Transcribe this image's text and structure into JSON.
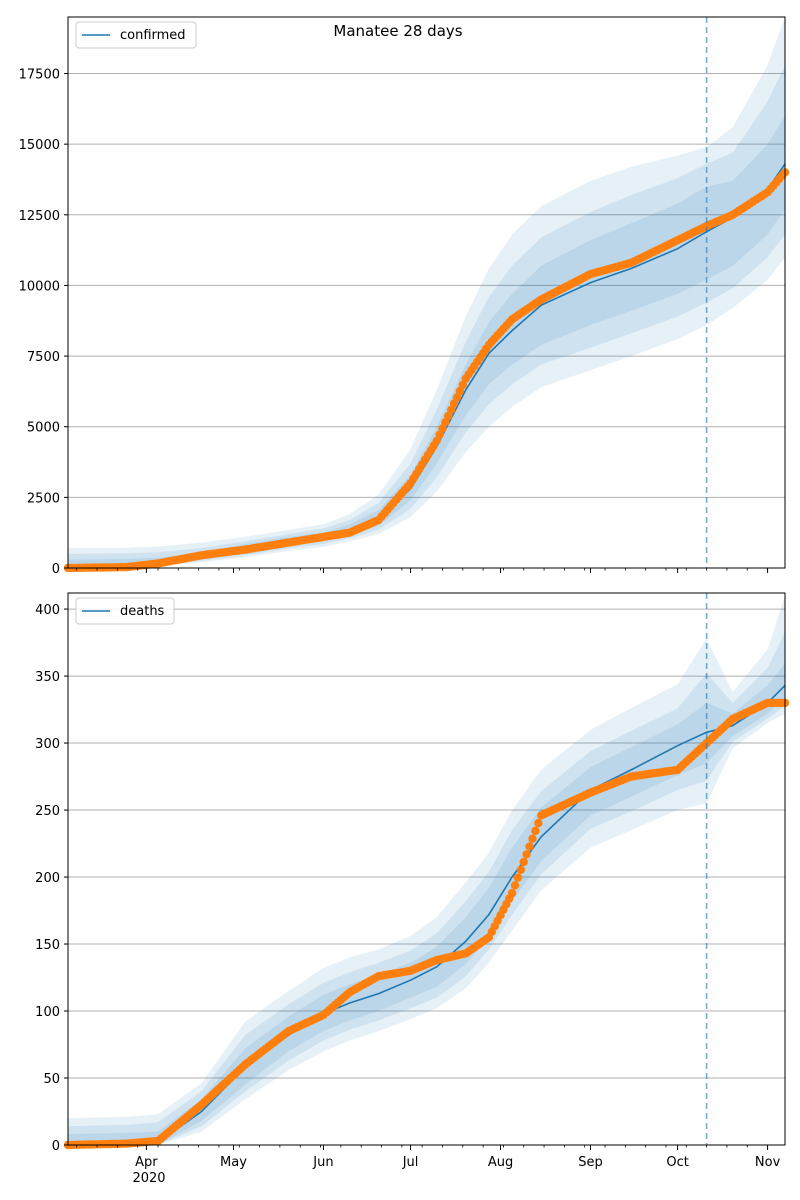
{
  "figure": {
    "title": "Manatee 28 days",
    "x_axis": {
      "month_labels": [
        "Apr",
        "May",
        "Jun",
        "Jul",
        "Aug",
        "Sep",
        "Oct",
        "Nov"
      ],
      "year_label": "2020",
      "range": [
        "2020-03-05",
        "2020-11-07"
      ]
    },
    "forecast_start": "2020-10-11",
    "colors": {
      "model": "#1f77b4",
      "observed": "#ff7f0e",
      "grid": "#b0b0b0"
    }
  },
  "chart_data": [
    {
      "type": "line",
      "legend": "confirmed",
      "legend_position": "top-left",
      "grid": true,
      "ylim": [
        0,
        19500
      ],
      "yticks": [
        0,
        2500,
        5000,
        7500,
        10000,
        12500,
        15000,
        17500
      ],
      "series": [
        {
          "name": "confirmed",
          "kind": "model-median",
          "x": [
            "2020-03-05",
            "2020-03-25",
            "2020-04-05",
            "2020-04-20",
            "2020-05-05",
            "2020-05-20",
            "2020-06-01",
            "2020-06-10",
            "2020-06-20",
            "2020-07-01",
            "2020-07-10",
            "2020-07-20",
            "2020-07-28",
            "2020-08-05",
            "2020-08-15",
            "2020-09-01",
            "2020-09-15",
            "2020-10-01",
            "2020-10-11",
            "2020-10-20",
            "2020-11-01",
            "2020-11-07"
          ],
          "y": [
            0,
            30,
            150,
            400,
            700,
            950,
            1100,
            1350,
            1750,
            2800,
            4300,
            6300,
            7600,
            8400,
            9300,
            10100,
            10600,
            11300,
            11900,
            12400,
            13400,
            14300
          ]
        },
        {
          "kind": "observed",
          "x": [
            "2020-03-05",
            "2020-03-25",
            "2020-04-05",
            "2020-04-20",
            "2020-05-05",
            "2020-05-20",
            "2020-06-01",
            "2020-06-10",
            "2020-06-20",
            "2020-07-01",
            "2020-07-10",
            "2020-07-20",
            "2020-07-28",
            "2020-08-05",
            "2020-08-15",
            "2020-09-01",
            "2020-09-15",
            "2020-10-01",
            "2020-10-11",
            "2020-10-20",
            "2020-11-01",
            "2020-11-07"
          ],
          "y": [
            0,
            30,
            160,
            450,
            650,
            900,
            1100,
            1250,
            1700,
            3000,
            4500,
            6700,
            7900,
            8800,
            9500,
            10400,
            10800,
            11600,
            12100,
            12500,
            13300,
            14000
          ]
        }
      ],
      "bands": [
        {
          "kind": "80%",
          "lower": [
            0,
            20,
            100,
            300,
            550,
            800,
            950,
            1150,
            1500,
            2400,
            3700,
            5400,
            6500,
            7200,
            7900,
            8600,
            9100,
            9700,
            10200,
            10700,
            11800,
            12700
          ],
          "upper": [
            300,
            320,
            360,
            560,
            850,
            1100,
            1250,
            1550,
            2050,
            3300,
            5000,
            7200,
            8700,
            9700,
            10700,
            11600,
            12200,
            12900,
            13500,
            13700,
            15000,
            16000
          ]
        },
        {
          "kind": "95%",
          "lower": [
            0,
            10,
            80,
            250,
            450,
            700,
            850,
            1050,
            1350,
            2100,
            3200,
            4800,
            5800,
            6500,
            7200,
            7800,
            8300,
            8900,
            9400,
            9900,
            11000,
            11800
          ],
          "upper": [
            500,
            520,
            560,
            700,
            950,
            1200,
            1400,
            1700,
            2300,
            3700,
            5600,
            8000,
            9600,
            10700,
            11700,
            12600,
            13200,
            13800,
            14300,
            14700,
            16500,
            17800
          ]
        },
        {
          "kind": "99%",
          "lower": [
            0,
            0,
            50,
            200,
            380,
            600,
            750,
            950,
            1200,
            1800,
            2700,
            4100,
            5000,
            5700,
            6400,
            7000,
            7500,
            8100,
            8600,
            9200,
            10200,
            11000
          ],
          "upper": [
            700,
            720,
            760,
            900,
            1100,
            1350,
            1550,
            1900,
            2600,
            4200,
            6300,
            8900,
            10600,
            11800,
            12800,
            13700,
            14200,
            14600,
            14900,
            15600,
            17800,
            19500
          ]
        }
      ]
    },
    {
      "type": "line",
      "legend": "deaths",
      "legend_position": "top-left",
      "grid": true,
      "ylim": [
        0,
        412
      ],
      "yticks": [
        0,
        50,
        100,
        150,
        200,
        250,
        300,
        350,
        400
      ],
      "series": [
        {
          "name": "deaths",
          "kind": "model-median",
          "x": [
            "2020-03-05",
            "2020-03-25",
            "2020-04-05",
            "2020-04-20",
            "2020-05-05",
            "2020-05-20",
            "2020-06-01",
            "2020-06-10",
            "2020-06-20",
            "2020-07-01",
            "2020-07-10",
            "2020-07-20",
            "2020-07-28",
            "2020-08-05",
            "2020-08-15",
            "2020-09-01",
            "2020-09-15",
            "2020-10-01",
            "2020-10-11",
            "2020-10-20",
            "2020-11-01",
            "2020-11-07"
          ],
          "y": [
            0,
            0,
            2,
            25,
            58,
            82,
            98,
            106,
            113,
            123,
            133,
            152,
            172,
            200,
            230,
            265,
            280,
            298,
            308,
            313,
            330,
            343
          ]
        },
        {
          "kind": "observed",
          "x": [
            "2020-03-05",
            "2020-03-25",
            "2020-04-05",
            "2020-04-20",
            "2020-05-05",
            "2020-05-20",
            "2020-06-01",
            "2020-06-10",
            "2020-06-20",
            "2020-07-01",
            "2020-07-10",
            "2020-07-20",
            "2020-07-28",
            "2020-08-05",
            "2020-08-15",
            "2020-09-01",
            "2020-09-15",
            "2020-10-01",
            "2020-10-11",
            "2020-10-20",
            "2020-11-01",
            "2020-11-07"
          ],
          "y": [
            0,
            1,
            3,
            30,
            60,
            85,
            97,
            114,
            126,
            130,
            138,
            143,
            155,
            188,
            246,
            263,
            275,
            280,
            300,
            318,
            330,
            330
          ]
        }
      ],
      "bands": [
        {
          "kind": "80%",
          "lower": [
            0,
            0,
            0,
            18,
            45,
            70,
            85,
            93,
            100,
            110,
            118,
            135,
            155,
            182,
            212,
            246,
            260,
            276,
            285,
            305,
            322,
            333
          ],
          "upper": [
            8,
            9,
            10,
            34,
            72,
            96,
            112,
            120,
            127,
            136,
            148,
            170,
            192,
            222,
            252,
            282,
            297,
            314,
            330,
            322,
            343,
            360
          ]
        },
        {
          "kind": "95%",
          "lower": [
            0,
            0,
            0,
            14,
            40,
            63,
            78,
            86,
            93,
            102,
            110,
            126,
            146,
            172,
            202,
            236,
            249,
            265,
            272,
            301,
            318,
            328
          ],
          "upper": [
            14,
            15,
            17,
            40,
            82,
            105,
            121,
            129,
            136,
            145,
            158,
            182,
            204,
            235,
            264,
            294,
            309,
            326,
            352,
            330,
            356,
            383
          ]
        },
        {
          "kind": "99%",
          "lower": [
            0,
            0,
            0,
            10,
            34,
            56,
            70,
            78,
            85,
            94,
            102,
            117,
            136,
            160,
            190,
            222,
            235,
            250,
            255,
            296,
            315,
            322
          ],
          "upper": [
            20,
            21,
            23,
            46,
            92,
            115,
            132,
            140,
            146,
            156,
            170,
            196,
            218,
            250,
            280,
            310,
            326,
            344,
            378,
            338,
            370,
            410
          ]
        }
      ]
    }
  ]
}
